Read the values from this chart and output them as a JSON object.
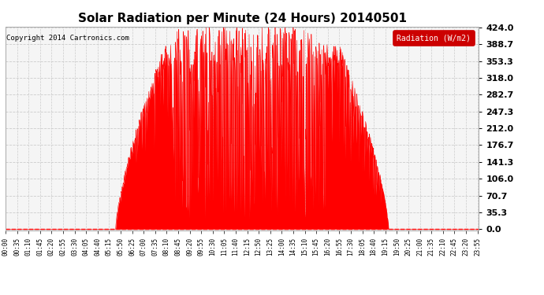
{
  "title": "Solar Radiation per Minute (24 Hours) 20140501",
  "copyright": "Copyright 2014 Cartronics.com",
  "legend_label": "Radiation (W/m2)",
  "bg_color": "#ffffff",
  "plot_bg_color": "#f5f5f5",
  "line_color": "#ff0000",
  "fill_color": "#ff0000",
  "grid_color": "#cccccc",
  "yticks": [
    0.0,
    35.3,
    70.7,
    106.0,
    141.3,
    176.7,
    212.0,
    247.3,
    282.7,
    318.0,
    353.3,
    388.7,
    424.0
  ],
  "ymax": 424.0,
  "total_minutes": 1440,
  "sunrise_minute": 335,
  "sunset_minute": 1165,
  "seed": 12345
}
